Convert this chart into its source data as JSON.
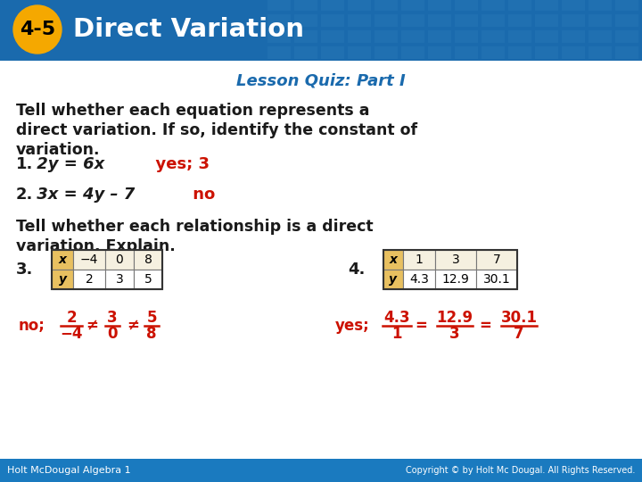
{
  "header_bg": "#1a6aad",
  "header_text": "Direct Variation",
  "header_badge_bg": "#f5a800",
  "header_badge_text": "4-5",
  "header_tile_color": "#2878b8",
  "subtitle": "Lesson Quiz: Part I",
  "subtitle_color": "#1a6aad",
  "body_bg": "#ffffff",
  "body_text_color": "#1a1a1a",
  "answer_color": "#cc1100",
  "instruction1_line1": "Tell whether each equation represents a",
  "instruction1_line2": "direct variation. If so, identify the constant of",
  "instruction1_line3": "variation.",
  "q1_num": "1.",
  "q1_eq": " 2y = 6x",
  "q1_answer": "  yes; 3",
  "q2_num": "2.",
  "q2_eq": " 3x = 4y – 7",
  "q2_answer": "     no",
  "instruction2_line1": "Tell whether each relationship is a direct",
  "instruction2_line2": "variation. Explain.",
  "q3_label": "3.",
  "q4_label": "4.",
  "table3_headers": [
    "x",
    "−4",
    "0",
    "8"
  ],
  "table3_row2": [
    "y",
    "2",
    "3",
    "5"
  ],
  "table4_headers": [
    "x",
    "1",
    "3",
    "7"
  ],
  "table4_row2": [
    "y",
    "4.3",
    "12.9",
    "30.1"
  ],
  "ans3_label": "no;",
  "ans3_num1": "2",
  "ans3_den1": "−4",
  "ans3_sep1": "≠",
  "ans3_num2": "3",
  "ans3_den2": "0",
  "ans3_sep2": "≠",
  "ans3_num3": "5",
  "ans3_den3": "8",
  "ans4_label": "yes;",
  "ans4_num1": "4.3",
  "ans4_den1": "1",
  "ans4_sep1": "=",
  "ans4_num2": "12.9",
  "ans4_den2": "3",
  "ans4_sep2": "=",
  "ans4_num3": "30.1",
  "ans4_den3": "7",
  "footer_bg": "#1a7abf",
  "footer_left": "Holt McDougal Algebra 1",
  "footer_right": "Copyright © by Holt Mc Dougal. All Rights Reserved.",
  "footer_text_color": "#ffffff"
}
